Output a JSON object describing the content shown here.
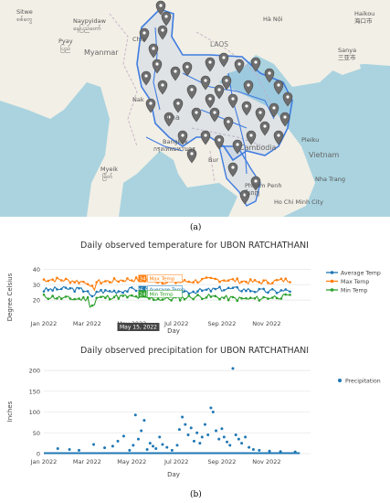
{
  "map": {
    "labels": {
      "sitwe": "Sitwe",
      "sitwe_local": "စစ်တွေ",
      "naypyidaw": "Naypyidaw",
      "naypyidaw_local": "နေပြည်တော်",
      "pyay": "Pyay",
      "pyay_local": "ပြည်",
      "myanmar": "Myanmar",
      "laos": "LAOS",
      "hanoi": "Hà Nội",
      "haiphong": "Haikou",
      "haiphong_local": "海口市",
      "sanya": "Sanya",
      "sanya_local": "三亚市",
      "chiang": "Chia",
      "nakhon": "Nak",
      "thai": "Tha",
      "bangkok": "Bangkok",
      "bangkok_local": "กรุงเทพมหานคร",
      "cambodia": "Cambodia",
      "pleiku": "Pleiku",
      "vietnam": "Vietnam",
      "myeik": "Myeik",
      "myeik_local": "မြိတ်",
      "nhatrang": "Nha Trang",
      "phnompenh": "Phnom Penh",
      "phnompenh_local": "ភ្នំពេញ",
      "hochiminh": "Ho Chi Minh City",
      "bur": "Bur"
    }
  },
  "captions": {
    "a": "(a)",
    "b": "(b)"
  },
  "colors": {
    "average": "#1f77b4",
    "max": "#ff7f0e",
    "min": "#2ca02c",
    "precip": "#1f77b4",
    "river": "#3f7ce0",
    "land": "#f2efe6",
    "water": "#aad3df"
  },
  "chart_data": [
    {
      "type": "line",
      "title": "Daily observed temperature for UBON RATCHATHANI",
      "xlabel": "Day",
      "ylabel": "Degree Celsius",
      "xticks": [
        "Jan 2022",
        "Mar 2022",
        "May 2022",
        "Jul 2022",
        "Sep 2022",
        "Nov 2022"
      ],
      "yticks": [
        20,
        30,
        40
      ],
      "ylim": [
        10,
        42
      ],
      "x_range": [
        "2022-01-01",
        "2022-12-31"
      ],
      "series": [
        {
          "name": "Average Temp",
          "base": 26.5,
          "seed": 3
        },
        {
          "name": "Max Temp",
          "base": 32.5,
          "seed": 7
        },
        {
          "name": "Min Temp",
          "base": 21.5,
          "seed": 11
        }
      ],
      "hover": {
        "date": "May 15, 2022",
        "values": [
          {
            "series": "Max Temp",
            "value": "34"
          },
          {
            "series": "Average Temp",
            "value": "26.8"
          },
          {
            "series": "Min Temp",
            "value": "24"
          }
        ]
      },
      "legend_position": "right"
    },
    {
      "type": "scatter",
      "title": "Daily observed precipitation for UBON RATCHATHANI",
      "xlabel": "Day",
      "ylabel": "Inches",
      "xticks": [
        "Jan 2022",
        "Mar 2022",
        "May 2022",
        "Jul 2022",
        "Sep 2022",
        "Nov 2022"
      ],
      "yticks": [
        0,
        50,
        100,
        150,
        200
      ],
      "ylim": [
        0,
        220
      ],
      "series": [
        {
          "name": "Precipitation",
          "points": [
            [
              "2022-01-20",
              12
            ],
            [
              "2022-02-05",
              10
            ],
            [
              "2022-02-18",
              8
            ],
            [
              "2022-03-10",
              22
            ],
            [
              "2022-03-25",
              14
            ],
            [
              "2022-04-05",
              18
            ],
            [
              "2022-04-12",
              30
            ],
            [
              "2022-04-20",
              42
            ],
            [
              "2022-04-28",
              8
            ],
            [
              "2022-05-03",
              20
            ],
            [
              "2022-05-06",
              93
            ],
            [
              "2022-05-10",
              35
            ],
            [
              "2022-05-14",
              55
            ],
            [
              "2022-05-18",
              80
            ],
            [
              "2022-05-22",
              10
            ],
            [
              "2022-05-26",
              25
            ],
            [
              "2022-05-30",
              18
            ],
            [
              "2022-06-03",
              12
            ],
            [
              "2022-06-08",
              40
            ],
            [
              "2022-06-12",
              22
            ],
            [
              "2022-06-18",
              15
            ],
            [
              "2022-06-25",
              8
            ],
            [
              "2022-07-02",
              20
            ],
            [
              "2022-07-05",
              58
            ],
            [
              "2022-07-09",
              88
            ],
            [
              "2022-07-13",
              70
            ],
            [
              "2022-07-17",
              45
            ],
            [
              "2022-07-21",
              62
            ],
            [
              "2022-07-25",
              30
            ],
            [
              "2022-07-29",
              50
            ],
            [
              "2022-08-02",
              25
            ],
            [
              "2022-08-05",
              40
            ],
            [
              "2022-08-09",
              70
            ],
            [
              "2022-08-13",
              45
            ],
            [
              "2022-08-17",
              110
            ],
            [
              "2022-08-20",
              100
            ],
            [
              "2022-08-24",
              55
            ],
            [
              "2022-08-28",
              35
            ],
            [
              "2022-09-01",
              60
            ],
            [
              "2022-09-04",
              40
            ],
            [
              "2022-09-08",
              28
            ],
            [
              "2022-09-12",
              20
            ],
            [
              "2022-09-16",
              205
            ],
            [
              "2022-09-20",
              45
            ],
            [
              "2022-09-24",
              35
            ],
            [
              "2022-09-28",
              25
            ],
            [
              "2022-10-03",
              40
            ],
            [
              "2022-10-08",
              15
            ],
            [
              "2022-10-14",
              10
            ],
            [
              "2022-10-22",
              8
            ],
            [
              "2022-11-05",
              6
            ],
            [
              "2022-11-20",
              5
            ],
            [
              "2022-12-10",
              4
            ]
          ]
        }
      ],
      "legend_position": "right"
    }
  ]
}
